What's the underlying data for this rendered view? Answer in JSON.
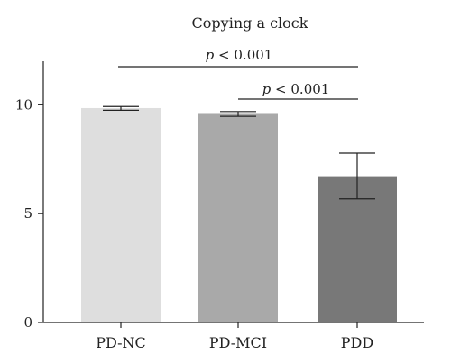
{
  "chart_data": {
    "type": "bar",
    "title": "Copying a clock",
    "categories": [
      "PD-NC",
      "PD-MCI",
      "PDD"
    ],
    "values": [
      9.85,
      9.58,
      6.72
    ],
    "error": [
      {
        "low": 9.75,
        "high": 9.92
      },
      {
        "low": 9.47,
        "high": 9.69
      },
      {
        "low": 5.68,
        "high": 7.78
      }
    ],
    "bar_colors": [
      "#dedede",
      "#a9a9a9",
      "#787878"
    ],
    "ylim": [
      0,
      12
    ],
    "yticks": [
      0,
      5,
      10
    ],
    "grid": false,
    "annotations": [
      {
        "from": "PD-NC",
        "to": "PDD",
        "p": "p",
        "rest": " < 0.001"
      },
      {
        "from": "PD-MCI",
        "to": "PDD",
        "p": "p",
        "rest": " < 0.001"
      }
    ]
  }
}
